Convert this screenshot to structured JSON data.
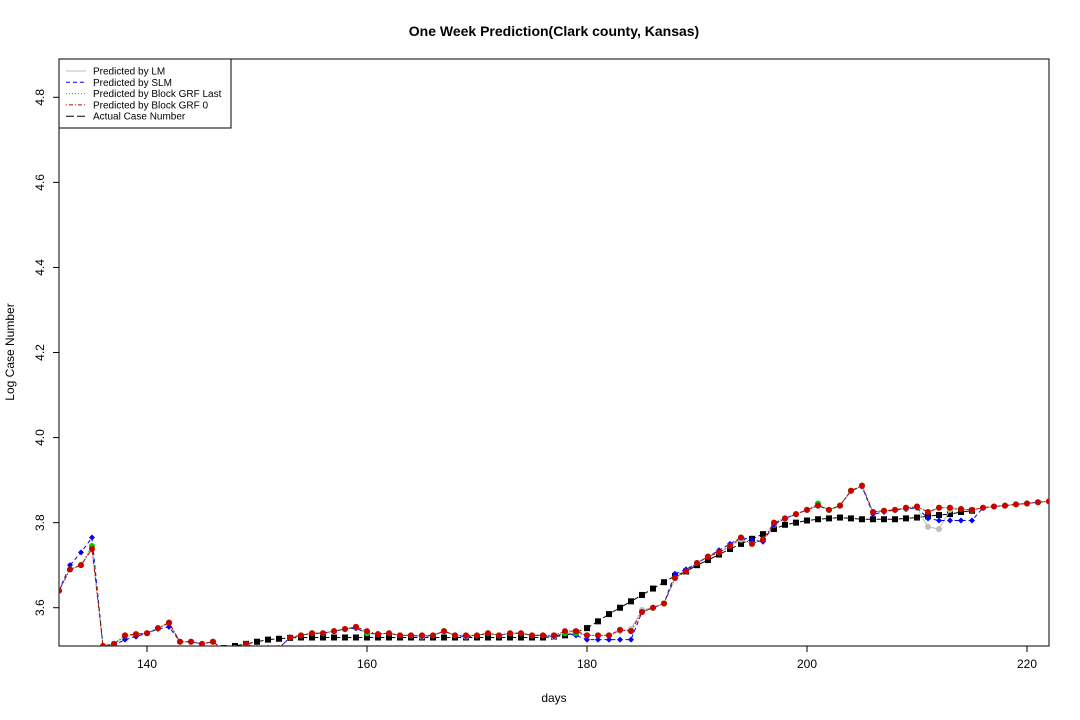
{
  "chart_data": {
    "type": "line",
    "title": "One Week Prediction(Clark county, Kansas)",
    "xlabel": "days",
    "ylabel": "Log Case Number",
    "xlim": [
      132,
      222
    ],
    "ylim": [
      3.51,
      4.89
    ],
    "xticks": [
      140,
      160,
      180,
      200,
      220
    ],
    "yticks": [
      3.6,
      3.8,
      4.0,
      4.2,
      4.4,
      4.6,
      4.8
    ],
    "xtick_labels": [
      "140",
      "160",
      "180",
      "200",
      "220"
    ],
    "ytick_labels": [
      "3.6",
      "3.8",
      "4.0",
      "4.2",
      "4.4",
      "4.6",
      "4.8"
    ],
    "grid": false,
    "legend_position": "top-left",
    "legend": [
      {
        "label": "Predicted by LM",
        "color": "#bebebe",
        "dash": "solid",
        "series": "lm"
      },
      {
        "label": "Predicted by SLM",
        "color": "#0000ff",
        "dash": "dashed",
        "series": "slm"
      },
      {
        "label": "Predicted by Block GRF Last",
        "color": "#00cd00",
        "dash": "dotted",
        "series": "grf_last"
      },
      {
        "label": "Predicted by Block GRF 0",
        "color": "#cd0000",
        "dash": "dotdash",
        "series": "grf0"
      },
      {
        "label": "Actual Case Number",
        "color": "#000000",
        "dash": "longdash",
        "series": "actual"
      }
    ],
    "series": [
      {
        "key": "actual",
        "color": "#000000",
        "marker": "square",
        "x": [
          136,
          137,
          138,
          139,
          140,
          141,
          142,
          143,
          144,
          145,
          146,
          147,
          148,
          149,
          150,
          151,
          152,
          153,
          154,
          155,
          156,
          157,
          158,
          159,
          160,
          161,
          162,
          163,
          164,
          165,
          166,
          167,
          168,
          169,
          170,
          171,
          172,
          173,
          174,
          175,
          176,
          177,
          178,
          179,
          180,
          181,
          182,
          183,
          184,
          185,
          186,
          187,
          188,
          189,
          190,
          191,
          192,
          193,
          194,
          195,
          196,
          197,
          198,
          199,
          200,
          201,
          202,
          203,
          204,
          205,
          206,
          207,
          208,
          209,
          210,
          211,
          212,
          213,
          214,
          215
        ],
        "values": [
          3.495,
          3.495,
          3.495,
          3.495,
          3.495,
          3.495,
          3.495,
          3.495,
          3.495,
          3.495,
          3.495,
          3.505,
          3.51,
          3.515,
          3.52,
          3.525,
          3.527,
          3.529,
          3.53,
          3.53,
          3.53,
          3.53,
          3.53,
          3.53,
          3.53,
          3.53,
          3.53,
          3.53,
          3.53,
          3.53,
          3.53,
          3.53,
          3.53,
          3.53,
          3.53,
          3.53,
          3.53,
          3.53,
          3.53,
          3.53,
          3.53,
          3.532,
          3.535,
          3.542,
          3.552,
          3.568,
          3.585,
          3.6,
          3.615,
          3.63,
          3.645,
          3.66,
          3.675,
          3.685,
          3.7,
          3.712,
          3.725,
          3.738,
          3.75,
          3.762,
          3.773,
          3.785,
          3.795,
          3.8,
          3.805,
          3.808,
          3.81,
          3.812,
          3.81,
          3.808,
          3.808,
          3.808,
          3.808,
          3.81,
          3.812,
          3.815,
          3.818,
          3.82,
          3.825,
          3.828
        ]
      },
      {
        "key": "lm",
        "color": "#bebebe",
        "marker": "circle",
        "x": [
          132,
          133,
          134,
          135,
          136,
          137,
          138,
          139,
          140,
          141,
          142,
          143,
          144,
          145,
          146,
          147,
          148,
          149,
          150,
          151,
          152,
          153,
          154,
          155,
          156,
          157,
          158,
          159,
          160,
          161,
          162,
          163,
          164,
          165,
          166,
          167,
          168,
          169,
          170,
          171,
          172,
          173,
          174,
          175,
          176,
          177,
          178,
          179,
          180,
          181,
          182,
          183,
          184,
          185,
          186,
          187,
          188,
          189,
          190,
          191,
          192,
          193,
          194,
          195,
          196,
          197,
          198,
          199,
          200,
          201,
          202,
          203,
          204,
          205,
          206,
          207,
          208,
          209,
          210,
          211,
          212,
          213,
          214,
          215,
          216,
          217,
          218,
          219,
          220,
          221,
          222
        ],
        "values": [
          3.64,
          3.69,
          3.7,
          3.74,
          3.51,
          3.515,
          3.532,
          3.535,
          3.54,
          3.552,
          3.562,
          3.52,
          3.52,
          3.515,
          3.52,
          3.5,
          3.505,
          3.51,
          3.5,
          3.505,
          3.505,
          3.53,
          3.535,
          3.54,
          3.54,
          3.545,
          3.55,
          3.552,
          3.54,
          3.538,
          3.54,
          3.535,
          3.535,
          3.532,
          3.535,
          3.545,
          3.535,
          3.532,
          3.535,
          3.54,
          3.535,
          3.54,
          3.54,
          3.535,
          3.535,
          3.532,
          3.54,
          3.54,
          3.535,
          3.535,
          3.535,
          3.545,
          3.55,
          3.595,
          3.6,
          3.61,
          3.67,
          3.685,
          3.705,
          3.72,
          3.73,
          3.745,
          3.76,
          3.75,
          3.76,
          3.795,
          3.81,
          3.82,
          3.83,
          3.84,
          3.83,
          3.84,
          3.875,
          3.885,
          3.825,
          3.828,
          3.83,
          3.832,
          3.835,
          3.79,
          3.785,
          3.83,
          3.832,
          3.83,
          3.835,
          3.838,
          3.84,
          3.843,
          3.845,
          3.848,
          3.85
        ]
      },
      {
        "key": "slm",
        "color": "#0000ff",
        "marker": "diamond",
        "x": [
          132,
          133,
          134,
          135,
          136,
          137,
          138,
          139,
          140,
          141,
          142,
          143,
          144,
          145,
          146,
          147,
          148,
          149,
          150,
          151,
          152,
          153,
          154,
          155,
          156,
          157,
          158,
          159,
          160,
          161,
          162,
          163,
          164,
          165,
          166,
          167,
          168,
          169,
          170,
          171,
          172,
          173,
          174,
          175,
          176,
          177,
          178,
          179,
          180,
          181,
          182,
          183,
          184,
          185,
          186,
          187,
          188,
          189,
          190,
          191,
          192,
          193,
          194,
          195,
          196,
          197,
          198,
          199,
          200,
          201,
          202,
          203,
          204,
          205,
          206,
          207,
          208,
          209,
          210,
          211,
          212,
          213,
          214,
          215,
          216,
          217,
          218,
          219,
          220,
          221,
          222
        ],
        "values": [
          3.64,
          3.7,
          3.73,
          3.765,
          3.51,
          3.512,
          3.525,
          3.532,
          3.54,
          3.55,
          3.555,
          3.52,
          3.52,
          3.515,
          3.52,
          3.5,
          3.505,
          3.51,
          3.5,
          3.505,
          3.505,
          3.53,
          3.535,
          3.54,
          3.54,
          3.545,
          3.55,
          3.552,
          3.54,
          3.538,
          3.54,
          3.535,
          3.535,
          3.532,
          3.535,
          3.545,
          3.535,
          3.532,
          3.535,
          3.54,
          3.535,
          3.54,
          3.54,
          3.535,
          3.535,
          3.532,
          3.54,
          3.535,
          3.525,
          3.525,
          3.525,
          3.525,
          3.525,
          3.59,
          3.6,
          3.61,
          3.68,
          3.69,
          3.705,
          3.72,
          3.735,
          3.75,
          3.765,
          3.76,
          3.755,
          3.795,
          3.81,
          3.82,
          3.83,
          3.84,
          3.83,
          3.84,
          3.875,
          3.885,
          3.82,
          3.825,
          3.83,
          3.832,
          3.835,
          3.81,
          3.805,
          3.805,
          3.805,
          3.805,
          3.835,
          3.838,
          3.84,
          3.843,
          3.845,
          3.848,
          3.85
        ]
      },
      {
        "key": "grf_last",
        "color": "#00cd00",
        "marker": "circle",
        "x": [
          132,
          133,
          134,
          135,
          136,
          137,
          138,
          139,
          140,
          141,
          142,
          143,
          144,
          145,
          146,
          147,
          148,
          149,
          150,
          151,
          152,
          153,
          154,
          155,
          156,
          157,
          158,
          159,
          160,
          161,
          162,
          163,
          164,
          165,
          166,
          167,
          168,
          169,
          170,
          171,
          172,
          173,
          174,
          175,
          176,
          177,
          178,
          179,
          180,
          181,
          182,
          183,
          184,
          185,
          186,
          187,
          188,
          189,
          190,
          191,
          192,
          193,
          194,
          195,
          196,
          197,
          198,
          199,
          200,
          201,
          202,
          203,
          204,
          205,
          206,
          207,
          208,
          209,
          210,
          211,
          212,
          213,
          214,
          215,
          216,
          217,
          218,
          219,
          220,
          221,
          222
        ],
        "values": [
          3.64,
          3.69,
          3.7,
          3.745,
          3.51,
          3.515,
          3.535,
          3.538,
          3.54,
          3.552,
          3.565,
          3.52,
          3.52,
          3.515,
          3.52,
          3.5,
          3.505,
          3.515,
          3.5,
          3.505,
          3.505,
          3.53,
          3.535,
          3.54,
          3.54,
          3.545,
          3.55,
          3.555,
          3.54,
          3.538,
          3.54,
          3.535,
          3.535,
          3.535,
          3.535,
          3.545,
          3.535,
          3.535,
          3.535,
          3.54,
          3.535,
          3.54,
          3.54,
          3.535,
          3.535,
          3.535,
          3.54,
          3.54,
          3.535,
          3.535,
          3.535,
          3.548,
          3.545,
          3.59,
          3.6,
          3.61,
          3.67,
          3.685,
          3.705,
          3.72,
          3.73,
          3.745,
          3.765,
          3.75,
          3.76,
          3.8,
          3.81,
          3.82,
          3.83,
          3.845,
          3.83,
          3.84,
          3.875,
          3.887,
          3.825,
          3.828,
          3.83,
          3.835,
          3.838,
          3.825,
          3.835,
          3.835,
          3.832,
          3.83,
          3.835,
          3.838,
          3.84,
          3.843,
          3.845,
          3.848,
          3.85
        ]
      },
      {
        "key": "grf0",
        "color": "#cd0000",
        "marker": "circle",
        "x": [
          132,
          133,
          134,
          135,
          136,
          137,
          138,
          139,
          140,
          141,
          142,
          143,
          144,
          145,
          146,
          147,
          148,
          149,
          150,
          151,
          152,
          153,
          154,
          155,
          156,
          157,
          158,
          159,
          160,
          161,
          162,
          163,
          164,
          165,
          166,
          167,
          168,
          169,
          170,
          171,
          172,
          173,
          174,
          175,
          176,
          177,
          178,
          179,
          180,
          181,
          182,
          183,
          184,
          185,
          186,
          187,
          188,
          189,
          190,
          191,
          192,
          193,
          194,
          195,
          196,
          197,
          198,
          199,
          200,
          201,
          202,
          203,
          204,
          205,
          206,
          207,
          208,
          209,
          210,
          211,
          212,
          213,
          214,
          215,
          216,
          217,
          218,
          219,
          220,
          221,
          222
        ],
        "values": [
          3.64,
          3.69,
          3.7,
          3.738,
          3.51,
          3.515,
          3.535,
          3.538,
          3.54,
          3.552,
          3.565,
          3.52,
          3.52,
          3.515,
          3.52,
          3.5,
          3.505,
          3.515,
          3.505,
          3.505,
          3.505,
          3.53,
          3.535,
          3.54,
          3.54,
          3.545,
          3.55,
          3.555,
          3.545,
          3.538,
          3.54,
          3.535,
          3.535,
          3.535,
          3.535,
          3.545,
          3.535,
          3.535,
          3.535,
          3.54,
          3.535,
          3.54,
          3.54,
          3.535,
          3.535,
          3.535,
          3.545,
          3.545,
          3.535,
          3.535,
          3.535,
          3.548,
          3.545,
          3.59,
          3.6,
          3.61,
          3.67,
          3.685,
          3.705,
          3.72,
          3.73,
          3.745,
          3.765,
          3.75,
          3.76,
          3.8,
          3.81,
          3.82,
          3.83,
          3.84,
          3.83,
          3.84,
          3.875,
          3.887,
          3.825,
          3.828,
          3.83,
          3.835,
          3.838,
          3.825,
          3.835,
          3.835,
          3.832,
          3.83,
          3.835,
          3.838,
          3.84,
          3.843,
          3.845,
          3.848,
          3.85
        ]
      }
    ]
  }
}
